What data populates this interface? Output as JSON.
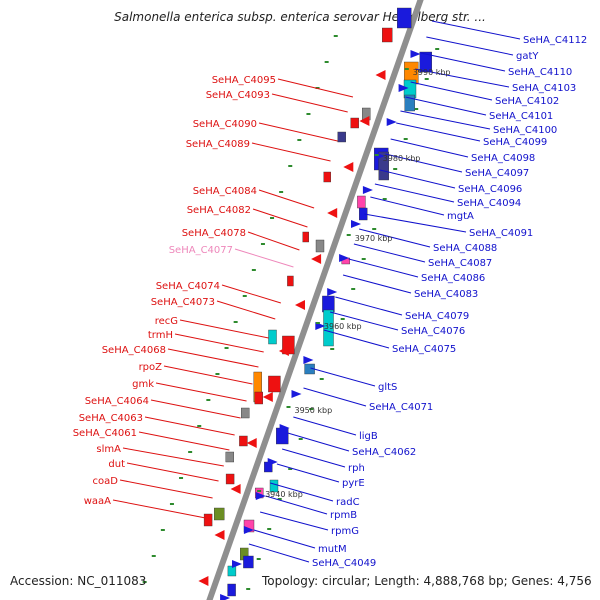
{
  "title": "Salmonella enterica subsp. enterica serovar Heidelberg str. ...",
  "footer": {
    "accession_label": "Accession:",
    "accession": "NC_011083",
    "topology_text": "Topology: circular; Length: 4,888,768 bp; Genes: 4,756"
  },
  "colors": {
    "backbone": "#8f8f8f",
    "left_label": "#dd1111",
    "right_label": "#1111cc",
    "faded_label": "#ee88bb",
    "dot": "#2e8b2e"
  },
  "kbp_marks": [
    "3990 kbp",
    "3980 kbp",
    "3970 kbp",
    "3960 kbp",
    "3950 kbp",
    "3940 kbp"
  ],
  "left_labels": [
    {
      "text": "SeHA_C4095"
    },
    {
      "text": "SeHA_C4093"
    },
    {
      "text": "SeHA_C4090"
    },
    {
      "text": "SeHA_C4089"
    },
    {
      "text": "SeHA_C4084"
    },
    {
      "text": "SeHA_C4082"
    },
    {
      "text": "SeHA_C4078"
    },
    {
      "text": "SeHA_C4077",
      "faded": true
    },
    {
      "text": "SeHA_C4074"
    },
    {
      "text": "SeHA_C4073"
    },
    {
      "text": "recG"
    },
    {
      "text": "trmH"
    },
    {
      "text": "SeHA_C4068"
    },
    {
      "text": "rpoZ"
    },
    {
      "text": "gmk"
    },
    {
      "text": "SeHA_C4064"
    },
    {
      "text": "SeHA_C4063"
    },
    {
      "text": "SeHA_C4061"
    },
    {
      "text": "slmA"
    },
    {
      "text": "dut"
    },
    {
      "text": "coaD"
    },
    {
      "text": "waaA"
    }
  ],
  "right_labels": [
    {
      "text": "SeHA_C4112"
    },
    {
      "text": "gatY"
    },
    {
      "text": "SeHA_C4110"
    },
    {
      "text": "SeHA_C4103"
    },
    {
      "text": "SeHA_C4102"
    },
    {
      "text": "SeHA_C4101"
    },
    {
      "text": "SeHA_C4100"
    },
    {
      "text": "SeHA_C4099"
    },
    {
      "text": "SeHA_C4098"
    },
    {
      "text": "SeHA_C4097"
    },
    {
      "text": "SeHA_C4096"
    },
    {
      "text": "SeHA_C4094"
    },
    {
      "text": "mgtA"
    },
    {
      "text": "SeHA_C4091"
    },
    {
      "text": "SeHA_C4088"
    },
    {
      "text": "SeHA_C4087"
    },
    {
      "text": "SeHA_C4086"
    },
    {
      "text": "SeHA_C4083"
    },
    {
      "text": "SeHA_C4079"
    },
    {
      "text": "SeHA_C4076"
    },
    {
      "text": "SeHA_C4075"
    },
    {
      "text": "gltS"
    },
    {
      "text": "SeHA_C4071"
    },
    {
      "text": "ligB"
    },
    {
      "text": "SeHA_C4062"
    },
    {
      "text": "rph"
    },
    {
      "text": "pyrE"
    },
    {
      "text": "radC"
    },
    {
      "text": "rpmB"
    },
    {
      "text": "rpmG"
    },
    {
      "text": "mutM"
    },
    {
      "text": "SeHA_C4049"
    }
  ]
}
